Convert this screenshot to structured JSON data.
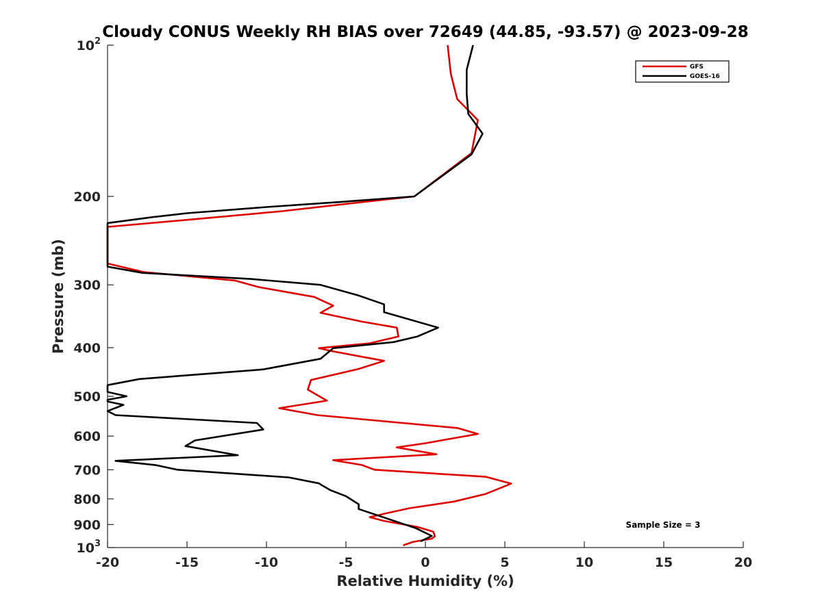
{
  "chart_data": {
    "type": "line",
    "title": "Cloudy CONUS Weekly RH BIAS over 72649 (44.85, -93.57) @ 2023-09-28",
    "xlabel": "Relative Humidity (%)",
    "ylabel": "Pressure (mb)",
    "xlim": [
      -20,
      20
    ],
    "ylim": [
      100,
      1000
    ],
    "y_scale": "log",
    "y_reversed": true,
    "grid": false,
    "legend_position": "top-right",
    "x_ticks": [
      -20,
      -15,
      -10,
      -5,
      0,
      5,
      10,
      15,
      20
    ],
    "x_tick_labels": [
      "-20",
      "-15",
      "-10",
      "-5",
      "0",
      "5",
      "10",
      "15",
      "20"
    ],
    "y_ticks": [
      {
        "value": 100,
        "base": "10",
        "sup": "2"
      },
      {
        "value": 200,
        "base": "200",
        "sup": ""
      },
      {
        "value": 300,
        "base": "300",
        "sup": ""
      },
      {
        "value": 400,
        "base": "400",
        "sup": ""
      },
      {
        "value": 500,
        "base": "500",
        "sup": ""
      },
      {
        "value": 600,
        "base": "600",
        "sup": ""
      },
      {
        "value": 700,
        "base": "700",
        "sup": ""
      },
      {
        "value": 800,
        "base": "800",
        "sup": ""
      },
      {
        "value": 900,
        "base": "900",
        "sup": ""
      },
      {
        "value": 1000,
        "base": "10",
        "sup": "3"
      }
    ],
    "annotation": "Sample Size = 3",
    "series": [
      {
        "name": "GFS",
        "color": "#e00000",
        "points": [
          [
            1.4,
            100
          ],
          [
            1.6,
            114
          ],
          [
            2.0,
            128
          ],
          [
            3.3,
            141
          ],
          [
            2.9,
            164
          ],
          [
            -0.7,
            200
          ],
          [
            -5.0,
            207
          ],
          [
            -9.0,
            214
          ],
          [
            -14.5,
            222
          ],
          [
            -20.0,
            230
          ],
          [
            -20.0,
            272
          ],
          [
            -17.7,
            283
          ],
          [
            -12.0,
            294
          ],
          [
            -10.5,
            303
          ],
          [
            -7.0,
            317
          ],
          [
            -5.8,
            330
          ],
          [
            -6.6,
            341
          ],
          [
            -4.0,
            355
          ],
          [
            -1.8,
            365
          ],
          [
            -1.7,
            380
          ],
          [
            -3.5,
            392
          ],
          [
            -6.7,
            401
          ],
          [
            -5.8,
            407
          ],
          [
            -2.6,
            425
          ],
          [
            -4.2,
            441
          ],
          [
            -7.2,
            464
          ],
          [
            -7.4,
            485
          ],
          [
            -6.2,
            510
          ],
          [
            -9.2,
            528
          ],
          [
            -6.8,
            545
          ],
          [
            2.0,
            578
          ],
          [
            3.3,
            594
          ],
          [
            0.0,
            620
          ],
          [
            -1.8,
            632
          ],
          [
            0.7,
            652
          ],
          [
            -5.8,
            670
          ],
          [
            -4.0,
            685
          ],
          [
            -3.2,
            700
          ],
          [
            3.8,
            723
          ],
          [
            5.4,
            746
          ],
          [
            3.8,
            782
          ],
          [
            1.8,
            810
          ],
          [
            -1.0,
            835
          ],
          [
            -2.5,
            855
          ],
          [
            -3.5,
            870
          ],
          [
            -2.6,
            885
          ],
          [
            -0.5,
            910
          ],
          [
            0.5,
            930
          ],
          [
            0.6,
            950
          ],
          [
            0.4,
            960
          ],
          [
            -0.8,
            975
          ],
          [
            -1.4,
            990
          ]
        ]
      },
      {
        "name": "GOES-16",
        "color": "#000000",
        "points": [
          [
            3.0,
            100
          ],
          [
            2.6,
            112
          ],
          [
            2.6,
            125
          ],
          [
            2.7,
            137
          ],
          [
            3.6,
            150
          ],
          [
            2.9,
            165
          ],
          [
            -0.7,
            200
          ],
          [
            -5.2,
            205
          ],
          [
            -10.0,
            210
          ],
          [
            -15.0,
            216
          ],
          [
            -17.2,
            220
          ],
          [
            -20.0,
            226
          ],
          [
            -20.0,
            276
          ],
          [
            -17.8,
            284
          ],
          [
            -11.0,
            292
          ],
          [
            -6.6,
            300
          ],
          [
            -4.2,
            315
          ],
          [
            -2.6,
            328
          ],
          [
            -2.6,
            340
          ],
          [
            0.8,
            365
          ],
          [
            -0.5,
            380
          ],
          [
            -2.0,
            390
          ],
          [
            -5.8,
            401
          ],
          [
            -6.6,
            421
          ],
          [
            -10.2,
            442
          ],
          [
            -18.0,
            462
          ],
          [
            -20.0,
            475
          ],
          [
            -20.0,
            490
          ],
          [
            -18.8,
            500
          ],
          [
            -20.0,
            508
          ],
          [
            -20.0,
            512
          ],
          [
            -19.0,
            520
          ],
          [
            -20.0,
            535
          ],
          [
            -19.5,
            545
          ],
          [
            -10.6,
            565
          ],
          [
            -10.2,
            582
          ],
          [
            -14.5,
            612
          ],
          [
            -15.1,
            628
          ],
          [
            -11.8,
            655
          ],
          [
            -19.5,
            672
          ],
          [
            -17.0,
            685
          ],
          [
            -15.6,
            700
          ],
          [
            -8.6,
            725
          ],
          [
            -6.7,
            745
          ],
          [
            -6.5,
            752
          ],
          [
            -6.0,
            768
          ],
          [
            -5.0,
            790
          ],
          [
            -4.2,
            820
          ],
          [
            -4.2,
            838
          ],
          [
            -0.6,
            915
          ],
          [
            0.4,
            948
          ],
          [
            -0.3,
            972
          ]
        ]
      }
    ]
  }
}
